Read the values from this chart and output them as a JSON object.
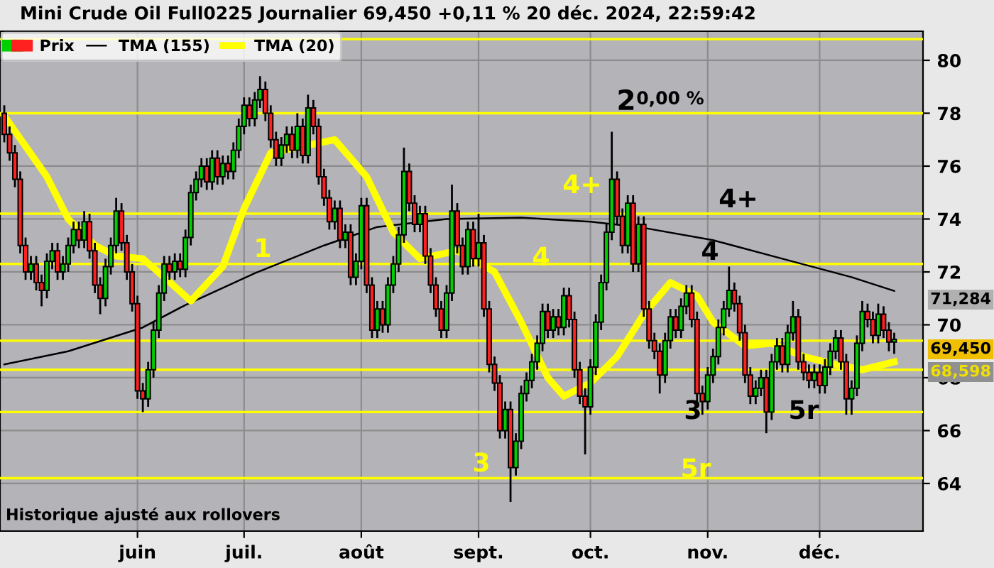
{
  "chart_data": {
    "type": "candlestick",
    "title": "Mini Crude Oil Full0225 Journalier 69,450 +0,11 % 20 déc. 2024, 22:59:42",
    "categories": [
      null,
      null,
      null,
      null,
      null,
      null,
      null,
      null,
      null,
      null,
      null,
      null,
      null,
      null,
      null,
      null,
      null,
      null,
      null,
      null,
      null,
      null,
      null,
      null,
      null,
      "juin",
      null,
      null,
      null,
      null,
      null,
      null,
      null,
      null,
      null,
      null,
      null,
      null,
      null,
      null,
      null,
      null,
      null,
      null,
      null,
      "juil.",
      null,
      null,
      null,
      null,
      null,
      null,
      null,
      null,
      null,
      null,
      null,
      null,
      null,
      null,
      null,
      null,
      null,
      null,
      null,
      null,
      null,
      "août",
      null,
      null,
      null,
      null,
      null,
      null,
      null,
      null,
      null,
      null,
      null,
      null,
      null,
      null,
      null,
      null,
      null,
      null,
      null,
      null,
      null,
      "sept.",
      null,
      null,
      null,
      null,
      null,
      null,
      null,
      null,
      null,
      null,
      null,
      null,
      null,
      null,
      null,
      null,
      null,
      null,
      null,
      null,
      "oct.",
      null,
      null,
      null,
      null,
      null,
      null,
      null,
      null,
      null,
      null,
      null,
      null,
      null,
      null,
      null,
      null,
      null,
      null,
      null,
      null,
      null,
      "nov.",
      null,
      null,
      null,
      null,
      null,
      null,
      null,
      null,
      null,
      null,
      null,
      null,
      null,
      null,
      null,
      null,
      null,
      null,
      null,
      null,
      "déc.",
      null,
      null,
      null,
      null,
      null,
      null,
      null,
      null,
      null,
      null,
      null,
      null,
      null,
      null
    ],
    "series": [
      {
        "name": "Prix",
        "type": "candlestick",
        "color": "#000000",
        "colors": [
          "#ff2020",
          "#ff2020",
          "#ff2020",
          "#ff2020",
          "#ff2020",
          "#00d000",
          "#ff2020",
          "#ff2020",
          "#00d000",
          "#00d000",
          "#ff2020",
          "#00d000",
          "#00d000",
          "#00d000",
          "#ff2020",
          "#00d000",
          "#ff2020",
          "#ff2020",
          "#ff2020",
          "#00d000",
          "#00d000",
          "#00d000",
          "#ff2020",
          "#ff2020",
          "#ff2020",
          "#ff2020",
          "#ff2020",
          "#00d000",
          "#00d000",
          "#00d000",
          "#00d000",
          "#ff2020",
          "#00d000",
          "#ff2020",
          "#00d000",
          "#00d000",
          "#00d000",
          "#00d000",
          "#ff2020",
          "#00d000",
          "#ff2020",
          "#00d000",
          "#ff2020",
          "#00d000",
          "#00d000",
          "#00d000",
          "#ff2020",
          "#00d000",
          "#00d000",
          "#ff2020",
          "#ff2020",
          "#ff2020",
          "#00d000",
          "#00d000",
          "#ff2020",
          "#00d000",
          "#ff2020",
          "#00d000",
          "#ff2020",
          "#ff2020",
          "#ff2020",
          "#ff2020",
          "#00d000",
          "#ff2020",
          "#00d000",
          "#ff2020",
          "#00d000",
          "#00d000",
          "#ff2020",
          "#ff2020",
          "#00d000",
          "#ff2020",
          "#00d000",
          "#00d000",
          "#00d000",
          "#00d000",
          "#ff2020",
          "#ff2020",
          "#00d000",
          "#ff2020",
          "#ff2020",
          "#ff2020",
          "#ff2020",
          "#00d000",
          "#00d000",
          "#ff2020",
          "#ff2020",
          "#00d000",
          "#ff2020",
          "#00d000",
          "#ff2020",
          "#ff2020",
          "#ff2020",
          "#ff2020",
          "#00d000",
          "#ff2020",
          "#00d000",
          "#00d000",
          "#00d000",
          "#00d000",
          "#00d000",
          "#00d000",
          "#ff2020",
          "#00d000",
          "#ff2020",
          "#00d000",
          "#ff2020",
          "#ff2020",
          "#ff2020",
          "#ff2020",
          "#00d000",
          "#00d000",
          "#00d000",
          "#00d000",
          "#00d000",
          "#ff2020",
          "#ff2020",
          "#00d000",
          "#ff2020",
          "#00d000",
          "#ff2020",
          "#ff2020",
          "#ff2020",
          "#ff2020",
          "#00d000",
          "#00d000",
          "#ff2020",
          "#00d000",
          "#00d000",
          "#ff2020",
          "#ff2020",
          "#ff2020",
          "#00d000",
          "#00d000",
          "#00d000",
          "#00d000",
          "#00d000",
          "#ff2020",
          "#ff2020",
          "#ff2020",
          "#ff2020",
          "#00d000",
          "#00d000",
          "#ff2020",
          "#00d000",
          "#00d000",
          "#ff2020",
          "#00d000",
          "#00d000",
          "#ff2020",
          "#ff2020",
          "#ff2020",
          "#00d000",
          "#ff2020",
          "#00d000",
          "#00d000",
          "#00d000",
          "#ff2020",
          "#ff2020",
          "#00d000",
          "#00d000",
          "#00d000",
          "#ff2020",
          "#ff2020",
          "#00d000",
          "#ff2020",
          "#ff2020",
          "#00d000"
        ],
        "ohlc": [
          [
            78.0,
            78.3,
            76.9,
            77.2
          ],
          [
            77.2,
            77.5,
            76.2,
            76.5
          ],
          [
            76.5,
            76.8,
            75.2,
            75.5
          ],
          [
            75.5,
            75.8,
            72.7,
            73.0
          ],
          [
            73.0,
            73.3,
            71.7,
            72.0
          ],
          [
            72.0,
            72.6,
            71.7,
            72.3
          ],
          [
            72.3,
            72.6,
            71.3,
            71.6
          ],
          [
            71.6,
            71.9,
            70.7,
            71.3
          ],
          [
            71.3,
            72.7,
            71.0,
            72.4
          ],
          [
            72.4,
            73.1,
            72.1,
            72.8
          ],
          [
            72.8,
            73.1,
            71.7,
            72.0
          ],
          [
            72.0,
            72.6,
            71.7,
            72.3
          ],
          [
            72.3,
            73.3,
            72.0,
            73.0
          ],
          [
            73.0,
            73.9,
            72.7,
            73.6
          ],
          [
            73.6,
            73.9,
            72.9,
            73.2
          ],
          [
            73.2,
            74.3,
            72.9,
            73.9
          ],
          [
            73.9,
            74.2,
            72.5,
            72.8
          ],
          [
            72.8,
            73.1,
            71.2,
            71.5
          ],
          [
            71.5,
            71.8,
            70.4,
            71.0
          ],
          [
            71.0,
            72.5,
            70.7,
            72.2
          ],
          [
            72.2,
            73.3,
            71.9,
            73.0
          ],
          [
            73.0,
            74.8,
            72.7,
            74.3
          ],
          [
            74.3,
            74.6,
            72.8,
            73.1
          ],
          [
            73.1,
            73.4,
            71.7,
            72.0
          ],
          [
            72.0,
            72.3,
            70.5,
            70.8
          ],
          [
            70.8,
            71.1,
            67.2,
            67.5
          ],
          [
            67.5,
            67.8,
            66.7,
            67.2
          ],
          [
            67.2,
            68.6,
            66.9,
            68.3
          ],
          [
            68.3,
            70.1,
            68.0,
            69.8
          ],
          [
            69.8,
            71.5,
            69.5,
            71.2
          ],
          [
            71.2,
            72.6,
            70.9,
            72.3
          ],
          [
            72.3,
            72.6,
            71.7,
            72.0
          ],
          [
            72.0,
            72.7,
            71.7,
            72.4
          ],
          [
            72.4,
            72.7,
            71.8,
            72.1
          ],
          [
            72.1,
            73.6,
            71.8,
            73.3
          ],
          [
            73.3,
            75.3,
            73.0,
            75.0
          ],
          [
            75.0,
            75.8,
            74.7,
            75.5
          ],
          [
            75.5,
            76.3,
            75.2,
            76.0
          ],
          [
            76.0,
            76.3,
            75.1,
            75.4
          ],
          [
            75.4,
            76.6,
            75.1,
            76.3
          ],
          [
            76.3,
            76.6,
            75.3,
            75.6
          ],
          [
            75.6,
            76.4,
            75.3,
            76.1
          ],
          [
            76.1,
            76.4,
            75.5,
            75.8
          ],
          [
            75.8,
            76.9,
            75.5,
            76.6
          ],
          [
            76.6,
            77.8,
            76.3,
            77.5
          ],
          [
            77.5,
            78.6,
            77.2,
            78.3
          ],
          [
            78.3,
            78.6,
            77.5,
            77.8
          ],
          [
            77.8,
            78.8,
            77.5,
            78.5
          ],
          [
            78.5,
            79.4,
            78.2,
            78.9
          ],
          [
            78.9,
            79.2,
            77.7,
            78.0
          ],
          [
            78.0,
            78.3,
            76.7,
            77.0
          ],
          [
            77.0,
            77.3,
            76.0,
            76.3
          ],
          [
            76.3,
            77.1,
            76.0,
            76.8
          ],
          [
            76.8,
            77.5,
            76.5,
            77.2
          ],
          [
            77.2,
            77.5,
            76.3,
            76.6
          ],
          [
            76.6,
            78.0,
            76.3,
            77.5
          ],
          [
            77.5,
            77.8,
            76.1,
            76.4
          ],
          [
            76.4,
            78.7,
            76.1,
            78.2
          ],
          [
            78.2,
            78.5,
            77.2,
            77.5
          ],
          [
            77.5,
            77.8,
            75.3,
            75.6
          ],
          [
            75.6,
            75.9,
            74.5,
            74.8
          ],
          [
            74.8,
            75.1,
            73.6,
            73.9
          ],
          [
            73.9,
            74.7,
            73.6,
            74.4
          ],
          [
            74.4,
            74.7,
            72.9,
            73.2
          ],
          [
            73.2,
            73.8,
            72.9,
            73.5
          ],
          [
            73.5,
            73.8,
            71.5,
            71.8
          ],
          [
            71.8,
            72.7,
            71.5,
            72.4
          ],
          [
            72.4,
            74.8,
            72.1,
            74.5
          ],
          [
            74.5,
            74.8,
            71.2,
            71.5
          ],
          [
            71.5,
            71.8,
            69.5,
            69.8
          ],
          [
            69.8,
            70.9,
            69.5,
            70.6
          ],
          [
            70.6,
            70.9,
            69.7,
            70.0
          ],
          [
            70.0,
            71.8,
            69.7,
            71.5
          ],
          [
            71.5,
            72.6,
            71.2,
            72.3
          ],
          [
            72.3,
            73.7,
            72.0,
            73.4
          ],
          [
            73.4,
            76.7,
            73.1,
            75.8
          ],
          [
            75.8,
            76.1,
            74.3,
            74.6
          ],
          [
            74.6,
            74.9,
            73.5,
            73.8
          ],
          [
            73.8,
            74.5,
            73.5,
            74.2
          ],
          [
            74.2,
            74.5,
            72.3,
            72.6
          ],
          [
            72.6,
            72.9,
            71.2,
            71.5
          ],
          [
            71.5,
            71.8,
            70.3,
            70.6
          ],
          [
            70.6,
            70.9,
            69.5,
            69.8
          ],
          [
            69.8,
            71.5,
            69.5,
            71.2
          ],
          [
            71.2,
            75.3,
            70.9,
            74.3
          ],
          [
            74.3,
            74.6,
            72.7,
            73.0
          ],
          [
            73.0,
            73.3,
            71.9,
            72.2
          ],
          [
            72.2,
            73.9,
            71.9,
            73.6
          ],
          [
            73.6,
            73.9,
            72.2,
            72.5
          ],
          [
            72.5,
            74.2,
            72.2,
            73.1
          ],
          [
            73.1,
            73.4,
            70.3,
            70.6
          ],
          [
            70.6,
            70.9,
            68.2,
            68.5
          ],
          [
            68.5,
            68.8,
            67.5,
            67.8
          ],
          [
            67.8,
            68.1,
            65.7,
            66.0
          ],
          [
            66.0,
            67.1,
            65.7,
            66.8
          ],
          [
            66.8,
            67.1,
            63.3,
            64.6
          ],
          [
            64.6,
            65.9,
            64.3,
            65.6
          ],
          [
            65.6,
            67.7,
            65.3,
            67.4
          ],
          [
            67.4,
            68.2,
            67.1,
            67.9
          ],
          [
            67.9,
            68.9,
            67.6,
            68.6
          ],
          [
            68.6,
            69.6,
            68.3,
            69.3
          ],
          [
            69.3,
            70.8,
            69.0,
            70.5
          ],
          [
            70.5,
            70.8,
            69.5,
            69.8
          ],
          [
            69.8,
            70.6,
            69.5,
            70.3
          ],
          [
            70.3,
            70.6,
            69.6,
            69.9
          ],
          [
            69.9,
            71.4,
            69.6,
            71.1
          ],
          [
            71.1,
            71.4,
            69.9,
            70.2
          ],
          [
            70.2,
            70.5,
            68.0,
            68.3
          ],
          [
            68.3,
            68.6,
            67.0,
            67.3
          ],
          [
            67.3,
            67.6,
            65.1,
            66.9
          ],
          [
            66.9,
            68.7,
            66.6,
            68.4
          ],
          [
            68.4,
            70.4,
            68.1,
            70.1
          ],
          [
            70.1,
            71.9,
            69.8,
            71.6
          ],
          [
            71.6,
            73.8,
            71.3,
            73.5
          ],
          [
            73.5,
            77.3,
            73.2,
            75.5
          ],
          [
            75.5,
            75.8,
            73.8,
            74.1
          ],
          [
            74.1,
            74.4,
            72.7,
            73.0
          ],
          [
            73.0,
            74.9,
            72.7,
            74.6
          ],
          [
            74.6,
            74.9,
            72.0,
            72.3
          ],
          [
            72.3,
            74.1,
            72.0,
            73.8
          ],
          [
            73.8,
            74.1,
            70.3,
            70.6
          ],
          [
            70.6,
            70.9,
            69.1,
            69.4
          ],
          [
            69.4,
            69.7,
            68.7,
            69.0
          ],
          [
            69.0,
            69.3,
            67.4,
            68.1
          ],
          [
            68.1,
            69.7,
            67.8,
            69.4
          ],
          [
            69.4,
            70.6,
            69.1,
            70.3
          ],
          [
            70.3,
            70.6,
            69.5,
            69.8
          ],
          [
            69.8,
            71.0,
            69.5,
            70.7
          ],
          [
            70.7,
            71.5,
            70.4,
            71.2
          ],
          [
            71.2,
            71.5,
            69.9,
            70.2
          ],
          [
            70.2,
            70.5,
            67.1,
            67.4
          ],
          [
            67.4,
            67.7,
            66.6,
            67.1
          ],
          [
            67.1,
            68.4,
            66.8,
            68.1
          ],
          [
            68.1,
            69.1,
            67.8,
            68.8
          ],
          [
            68.8,
            70.2,
            68.5,
            69.9
          ],
          [
            69.9,
            70.9,
            69.6,
            70.6
          ],
          [
            70.6,
            72.2,
            70.3,
            71.3
          ],
          [
            71.3,
            71.6,
            70.5,
            70.8
          ],
          [
            70.8,
            71.1,
            69.4,
            69.7
          ],
          [
            69.7,
            70.0,
            67.8,
            68.1
          ],
          [
            68.1,
            68.4,
            67.0,
            67.3
          ],
          [
            67.3,
            67.9,
            67.0,
            67.6
          ],
          [
            67.6,
            68.3,
            67.3,
            68.0
          ],
          [
            68.0,
            68.3,
            65.9,
            66.7
          ],
          [
            66.7,
            68.9,
            66.4,
            68.6
          ],
          [
            68.6,
            69.5,
            68.3,
            69.2
          ],
          [
            69.2,
            69.5,
            68.2,
            68.5
          ],
          [
            68.5,
            70.0,
            68.2,
            69.7
          ],
          [
            69.7,
            70.9,
            69.4,
            70.3
          ],
          [
            70.3,
            70.6,
            68.3,
            68.6
          ],
          [
            68.6,
            68.9,
            67.9,
            68.2
          ],
          [
            68.2,
            68.5,
            67.6,
            67.9
          ],
          [
            67.9,
            68.5,
            67.6,
            68.2
          ],
          [
            68.2,
            68.5,
            67.4,
            67.7
          ],
          [
            67.7,
            68.7,
            67.4,
            68.4
          ],
          [
            68.4,
            69.3,
            68.1,
            69.0
          ],
          [
            69.0,
            69.8,
            68.7,
            69.5
          ],
          [
            69.5,
            69.8,
            68.3,
            68.6
          ],
          [
            68.6,
            68.9,
            66.6,
            67.2
          ],
          [
            67.2,
            67.9,
            66.6,
            67.6
          ],
          [
            67.6,
            69.6,
            67.3,
            69.3
          ],
          [
            69.3,
            70.9,
            69.0,
            70.5
          ],
          [
            70.5,
            70.8,
            69.9,
            70.2
          ],
          [
            70.2,
            70.5,
            69.3,
            69.6
          ],
          [
            69.6,
            70.8,
            69.3,
            70.4
          ],
          [
            70.4,
            70.7,
            69.5,
            69.8
          ],
          [
            69.8,
            70.1,
            69.0,
            69.35
          ],
          [
            69.35,
            69.7,
            68.9,
            69.45
          ]
        ]
      },
      {
        "name": "TMA (155)",
        "type": "line",
        "color": "#000000",
        "values": [
          68.5,
          null,
          null,
          null,
          null,
          null,
          null,
          null,
          null,
          null,
          null,
          null,
          69.0,
          null,
          null,
          null,
          null,
          null,
          null,
          null,
          null,
          null,
          null,
          null,
          null,
          null,
          69.9,
          null,
          null,
          null,
          null,
          null,
          null,
          null,
          70.75,
          null,
          null,
          null,
          null,
          null,
          null,
          null,
          null,
          null,
          null,
          null,
          null,
          71.95,
          null,
          null,
          null,
          null,
          null,
          null,
          null,
          null,
          null,
          null,
          null,
          null,
          73.0,
          null,
          null,
          null,
          null,
          null,
          null,
          null,
          null,
          null,
          73.7,
          null,
          null,
          null,
          null,
          null,
          null,
          null,
          null,
          null,
          null,
          null,
          null,
          74.0,
          null,
          null,
          null,
          null,
          null,
          null,
          null,
          null,
          null,
          null,
          null,
          null,
          null,
          74.05,
          null,
          null,
          null,
          null,
          null,
          null,
          null,
          null,
          null,
          null,
          null,
          null,
          73.9,
          null,
          null,
          null,
          null,
          null,
          null,
          null,
          null,
          73.7,
          null,
          null,
          null,
          null,
          null,
          null,
          null,
          null,
          null,
          null,
          null,
          null,
          null,
          73.2,
          null,
          null,
          null,
          null,
          null,
          null,
          null,
          null,
          null,
          null,
          null,
          null,
          72.5,
          null,
          null,
          null,
          null,
          null,
          null,
          null,
          null,
          null,
          null,
          null,
          null,
          71.8,
          null,
          null,
          null,
          null,
          null,
          null,
          null,
          71.28
        ]
      },
      {
        "name": "TMA (20)",
        "type": "line",
        "color": "#ffff00",
        "values": [
          77.9,
          null,
          null,
          null,
          null,
          null,
          null,
          null,
          75.6,
          null,
          null,
          null,
          74.0,
          null,
          null,
          null,
          null,
          73.0,
          null,
          null,
          null,
          72.6,
          null,
          null,
          null,
          null,
          72.5,
          null,
          null,
          null,
          71.8,
          null,
          null,
          null,
          null,
          70.9,
          null,
          null,
          null,
          null,
          null,
          72.2,
          null,
          null,
          null,
          74.4,
          null,
          null,
          null,
          null,
          76.5,
          null,
          null,
          null,
          null,
          null,
          null,
          null,
          null,
          null,
          null,
          null,
          77.0,
          null,
          null,
          null,
          null,
          null,
          75.6,
          null,
          null,
          null,
          null,
          73.5,
          null,
          null,
          null,
          null,
          72.5,
          null,
          null,
          null,
          null,
          null,
          null,
          72.8,
          null,
          null,
          null,
          null,
          null,
          null,
          72.0,
          null,
          null,
          null,
          null,
          70.1,
          null,
          null,
          null,
          null,
          68.0,
          null,
          null,
          67.3,
          null,
          null,
          null,
          null,
          67.8,
          null,
          null,
          null,
          null,
          68.8,
          null,
          null,
          null,
          null,
          70.4,
          null,
          null,
          null,
          null,
          71.6,
          null,
          null,
          null,
          null,
          71.1,
          null,
          null,
          70.1,
          null,
          null,
          null,
          null,
          null,
          69.2,
          null,
          null,
          null,
          null,
          69.3,
          null,
          null,
          null,
          null,
          null,
          68.8,
          null,
          null,
          null,
          null,
          null,
          68.5,
          null,
          null,
          null,
          null,
          68.3,
          null,
          null,
          null,
          null,
          null,
          68.6
        ]
      }
    ],
    "ylim": [
      62.2,
      81.1
    ],
    "yticks": [
      64,
      66,
      68,
      70,
      72,
      74,
      76,
      78,
      80
    ],
    "ref_lines": [
      {
        "axis": "y",
        "value": 80.8,
        "color": "#ffff00"
      },
      {
        "axis": "y",
        "value": 78.0,
        "color": "#ffff00"
      },
      {
        "axis": "y",
        "value": 74.2,
        "color": "#ffff00"
      },
      {
        "axis": "y",
        "value": 72.3,
        "color": "#ffff00"
      },
      {
        "axis": "y",
        "value": 69.4,
        "color": "#ffff00"
      },
      {
        "axis": "y",
        "value": 68.3,
        "color": "#ffff00"
      },
      {
        "axis": "y",
        "value": 66.7,
        "color": "#ffff00"
      },
      {
        "axis": "y",
        "value": 64.2,
        "color": "#ffff00"
      }
    ],
    "annotations": [
      "1",
      "4+",
      "4",
      "3",
      "5r",
      "2",
      "0,00 %",
      "4+",
      "4",
      "3",
      "5r",
      "71,284",
      "69,450",
      "68,598",
      "Historique ajusté aux rollovers"
    ],
    "grid": true,
    "legend": "top left",
    "line_style": "solid",
    "marker": "none"
  }
}
